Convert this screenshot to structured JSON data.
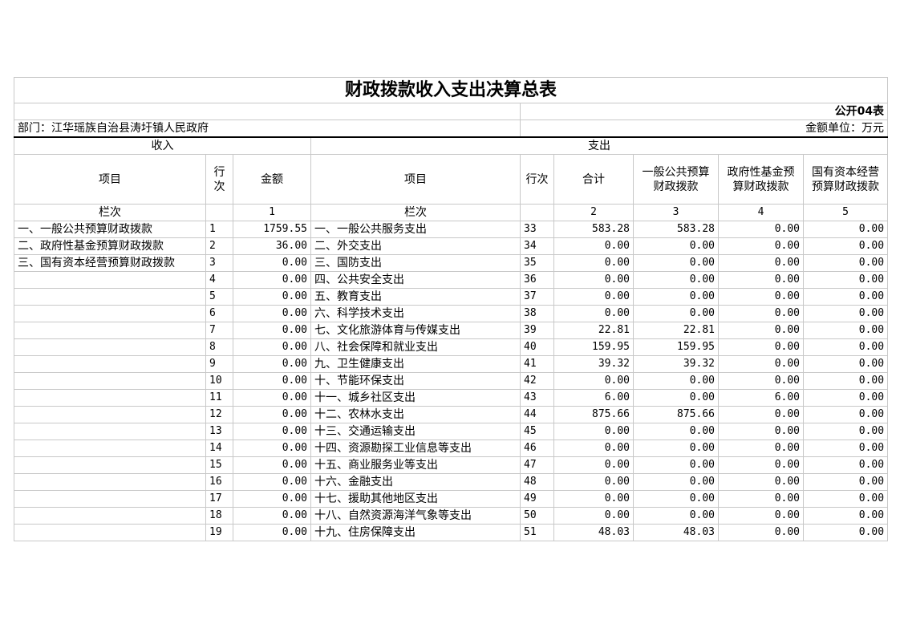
{
  "title": "财政拨款收入支出决算总表",
  "table_code": "公开04表",
  "department": "部门：江华瑶族自治县涛圩镇人民政府",
  "unit": "金额单位：万元",
  "income_header": "收入",
  "expense_header": "支出",
  "columns": {
    "item": "项目",
    "row_no": "行次",
    "amount": "金额",
    "exp_item": "项目",
    "exp_row_no": "行次",
    "total": "合计",
    "general": "一般公共预算财政拨款",
    "gov_fund": "政府性基金预算财政拨款",
    "state_capital": "国有资本经营预算财政拨款"
  },
  "column_index": {
    "label": "栏次",
    "amount": "1",
    "exp_label": "栏次",
    "total": "2",
    "general": "3",
    "gov_fund": "4",
    "state_capital": "5"
  },
  "rows": [
    [
      "一、一般公共预算财政拨款",
      "1",
      "1759.55",
      "一、一般公共服务支出",
      "33",
      "583.28",
      "583.28",
      "0.00",
      "0.00"
    ],
    [
      "二、政府性基金预算财政拨款",
      "2",
      "36.00",
      "二、外交支出",
      "34",
      "0.00",
      "0.00",
      "0.00",
      "0.00"
    ],
    [
      "三、国有资本经营预算财政拨款",
      "3",
      "0.00",
      "三、国防支出",
      "35",
      "0.00",
      "0.00",
      "0.00",
      "0.00"
    ],
    [
      "",
      "4",
      "0.00",
      "四、公共安全支出",
      "36",
      "0.00",
      "0.00",
      "0.00",
      "0.00"
    ],
    [
      "",
      "5",
      "0.00",
      "五、教育支出",
      "37",
      "0.00",
      "0.00",
      "0.00",
      "0.00"
    ],
    [
      "",
      "6",
      "0.00",
      "六、科学技术支出",
      "38",
      "0.00",
      "0.00",
      "0.00",
      "0.00"
    ],
    [
      "",
      "7",
      "0.00",
      "七、文化旅游体育与传媒支出",
      "39",
      "22.81",
      "22.81",
      "0.00",
      "0.00"
    ],
    [
      "",
      "8",
      "0.00",
      "八、社会保障和就业支出",
      "40",
      "159.95",
      "159.95",
      "0.00",
      "0.00"
    ],
    [
      "",
      "9",
      "0.00",
      "九、卫生健康支出",
      "41",
      "39.32",
      "39.32",
      "0.00",
      "0.00"
    ],
    [
      "",
      "10",
      "0.00",
      "十、节能环保支出",
      "42",
      "0.00",
      "0.00",
      "0.00",
      "0.00"
    ],
    [
      "",
      "11",
      "0.00",
      "十一、城乡社区支出",
      "43",
      "6.00",
      "0.00",
      "6.00",
      "0.00"
    ],
    [
      "",
      "12",
      "0.00",
      "十二、农林水支出",
      "44",
      "875.66",
      "875.66",
      "0.00",
      "0.00"
    ],
    [
      "",
      "13",
      "0.00",
      "十三、交通运输支出",
      "45",
      "0.00",
      "0.00",
      "0.00",
      "0.00"
    ],
    [
      "",
      "14",
      "0.00",
      "十四、资源勘探工业信息等支出",
      "46",
      "0.00",
      "0.00",
      "0.00",
      "0.00"
    ],
    [
      "",
      "15",
      "0.00",
      "十五、商业服务业等支出",
      "47",
      "0.00",
      "0.00",
      "0.00",
      "0.00"
    ],
    [
      "",
      "16",
      "0.00",
      "十六、金融支出",
      "48",
      "0.00",
      "0.00",
      "0.00",
      "0.00"
    ],
    [
      "",
      "17",
      "0.00",
      "十七、援助其他地区支出",
      "49",
      "0.00",
      "0.00",
      "0.00",
      "0.00"
    ],
    [
      "",
      "18",
      "0.00",
      "十八、自然资源海洋气象等支出",
      "50",
      "0.00",
      "0.00",
      "0.00",
      "0.00"
    ],
    [
      "",
      "19",
      "0.00",
      "十九、住房保障支出",
      "51",
      "48.03",
      "48.03",
      "0.00",
      "0.00"
    ]
  ]
}
